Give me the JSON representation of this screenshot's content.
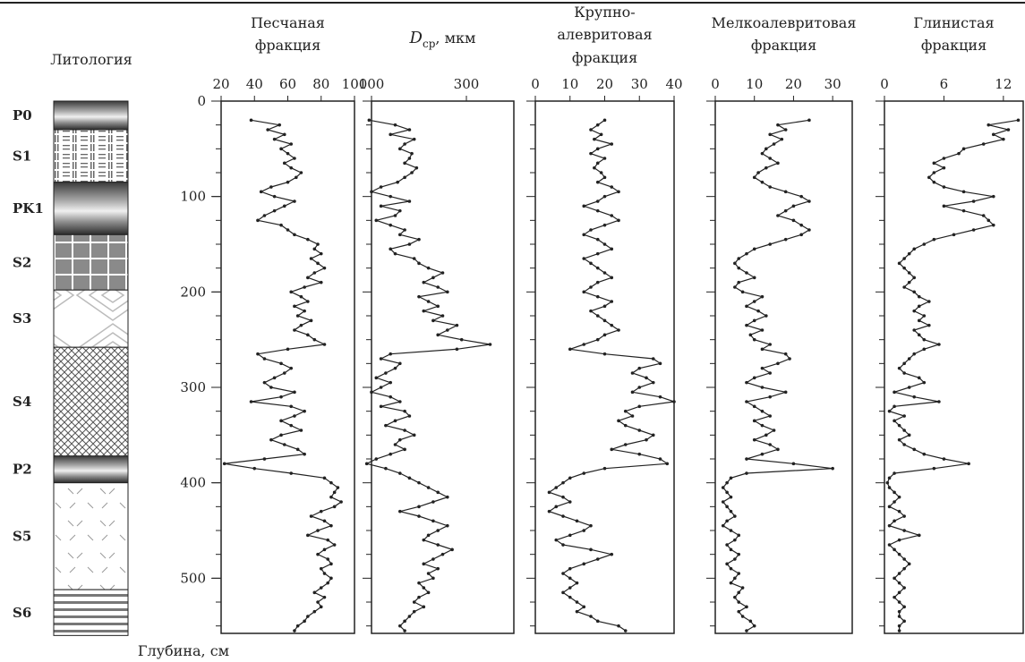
{
  "lithology": {
    "title": "Литология",
    "units": [
      {
        "label": "P0",
        "top": 0,
        "bottom": 30,
        "pattern": "dark-grad"
      },
      {
        "label": "S1",
        "top": 30,
        "bottom": 85,
        "pattern": "lines"
      },
      {
        "label": "PK1",
        "top": 85,
        "bottom": 140,
        "pattern": "dark-grad"
      },
      {
        "label": "S2",
        "top": 140,
        "bottom": 198,
        "pattern": "grid"
      },
      {
        "label": "S3",
        "top": 198,
        "bottom": 258,
        "pattern": "diamond"
      },
      {
        "label": "S4",
        "top": 258,
        "bottom": 372,
        "pattern": "cross"
      },
      {
        "label": "P2",
        "top": 372,
        "bottom": 400,
        "pattern": "dark-grad"
      },
      {
        "label": "S5",
        "top": 400,
        "bottom": 512,
        "pattern": "dash"
      },
      {
        "label": "S6",
        "top": 512,
        "bottom": 560,
        "pattern": "stripes"
      }
    ]
  },
  "chart_data": {
    "type": "line",
    "y_title": "Глубина, см",
    "ylim": [
      0,
      560
    ],
    "y_ticks": [
      0,
      100,
      200,
      300,
      400,
      500
    ],
    "depth": [
      20,
      25,
      30,
      35,
      40,
      45,
      50,
      55,
      60,
      65,
      70,
      75,
      80,
      85,
      90,
      95,
      100,
      105,
      110,
      115,
      120,
      125,
      130,
      135,
      140,
      145,
      150,
      155,
      160,
      165,
      170,
      175,
      180,
      185,
      190,
      195,
      200,
      205,
      210,
      215,
      220,
      225,
      230,
      235,
      240,
      245,
      250,
      255,
      260,
      265,
      270,
      275,
      280,
      285,
      290,
      295,
      300,
      305,
      310,
      315,
      320,
      325,
      330,
      335,
      340,
      345,
      350,
      355,
      360,
      365,
      370,
      375,
      380,
      385,
      390,
      395,
      400,
      405,
      410,
      415,
      420,
      425,
      430,
      435,
      440,
      445,
      450,
      455,
      460,
      465,
      470,
      475,
      480,
      485,
      490,
      495,
      500,
      505,
      510,
      515,
      520,
      525,
      530,
      535,
      540,
      545,
      550,
      555
    ],
    "series": [
      {
        "name": "Песчаная фракция",
        "xlim": [
          20,
          100
        ],
        "x_ticks": [
          20,
          40,
          60,
          80,
          100
        ],
        "values": [
          38,
          55,
          48,
          58,
          52,
          62,
          56,
          60,
          64,
          58,
          62,
          68,
          65,
          60,
          50,
          44,
          52,
          64,
          58,
          52,
          46,
          42,
          56,
          60,
          64,
          72,
          78,
          76,
          80,
          74,
          78,
          82,
          76,
          72,
          80,
          70,
          62,
          68,
          72,
          64,
          70,
          66,
          74,
          68,
          64,
          72,
          76,
          82,
          60,
          42,
          46,
          56,
          62,
          58,
          52,
          46,
          50,
          64,
          56,
          38,
          62,
          70,
          64,
          56,
          62,
          68,
          56,
          50,
          58,
          66,
          70,
          46,
          22,
          40,
          62,
          82,
          86,
          90,
          88,
          86,
          92,
          88,
          80,
          74,
          82,
          86,
          78,
          72,
          84,
          88,
          82,
          78,
          84,
          86,
          80,
          82,
          86,
          84,
          80,
          76,
          82,
          78,
          80,
          76,
          72,
          70,
          66,
          64
        ]
      },
      {
        "name": "Dср, мкм",
        "xlim": [
          100,
          400
        ],
        "x_ticks": [
          100,
          300
        ],
        "values": [
          95,
          150,
          180,
          140,
          190,
          170,
          160,
          185,
          180,
          170,
          195,
          185,
          170,
          155,
          120,
          100,
          140,
          180,
          120,
          160,
          150,
          110,
          140,
          170,
          160,
          200,
          180,
          140,
          150,
          190,
          200,
          220,
          250,
          230,
          210,
          240,
          260,
          200,
          220,
          240,
          210,
          250,
          230,
          280,
          260,
          240,
          290,
          350,
          280,
          140,
          120,
          160,
          150,
          130,
          110,
          140,
          120,
          100,
          140,
          160,
          120,
          170,
          180,
          150,
          130,
          170,
          190,
          160,
          150,
          170,
          140,
          110,
          90,
          130,
          160,
          180,
          200,
          220,
          240,
          260,
          230,
          200,
          160,
          200,
          230,
          260,
          240,
          220,
          210,
          240,
          270,
          250,
          230,
          210,
          240,
          220,
          230,
          200,
          210,
          220,
          200,
          190,
          210,
          190,
          180,
          170,
          160,
          170
        ]
      },
      {
        "name": "Крупно-алевритовая фракция",
        "xlim": [
          0,
          40
        ],
        "x_ticks": [
          0,
          10,
          20,
          30,
          40
        ],
        "values": [
          20,
          18,
          16,
          19,
          17,
          22,
          18,
          16,
          20,
          18,
          17,
          19,
          20,
          18,
          22,
          24,
          20,
          18,
          14,
          18,
          22,
          24,
          20,
          16,
          14,
          18,
          20,
          22,
          18,
          14,
          16,
          18,
          20,
          22,
          18,
          16,
          14,
          18,
          22,
          20,
          16,
          18,
          20,
          22,
          24,
          20,
          18,
          14,
          10,
          20,
          34,
          36,
          30,
          28,
          32,
          34,
          30,
          28,
          36,
          40,
          30,
          26,
          28,
          24,
          26,
          30,
          34,
          32,
          26,
          22,
          30,
          36,
          38,
          20,
          14,
          10,
          8,
          6,
          4,
          8,
          10,
          6,
          4,
          8,
          12,
          16,
          14,
          10,
          6,
          8,
          16,
          22,
          18,
          14,
          10,
          8,
          10,
          12,
          10,
          8,
          10,
          12,
          14,
          12,
          16,
          18,
          24,
          26
        ]
      },
      {
        "name": "Мелкоалевритовая фракция",
        "xlim": [
          0,
          35
        ],
        "x_ticks": [
          0,
          10,
          20,
          30
        ],
        "values": [
          24,
          16,
          18,
          14,
          17,
          15,
          13,
          12,
          14,
          16,
          13,
          11,
          10,
          12,
          14,
          18,
          22,
          24,
          20,
          18,
          16,
          20,
          22,
          24,
          22,
          18,
          14,
          10,
          8,
          6,
          5,
          6,
          8,
          10,
          6,
          5,
          7,
          12,
          10,
          8,
          11,
          13,
          10,
          8,
          12,
          9,
          10,
          14,
          12,
          18,
          19,
          16,
          12,
          14,
          10,
          8,
          12,
          18,
          14,
          8,
          10,
          12,
          14,
          10,
          12,
          15,
          13,
          10,
          14,
          16,
          12,
          8,
          20,
          30,
          8,
          4,
          3,
          2,
          3,
          4,
          2,
          3,
          4,
          5,
          3,
          2,
          4,
          6,
          5,
          3,
          4,
          6,
          5,
          3,
          4,
          6,
          5,
          4,
          7,
          6,
          5,
          6,
          8,
          6,
          7,
          9,
          10,
          8
        ]
      },
      {
        "name": "Глинистая фракция",
        "xlim": [
          0,
          14
        ],
        "x_ticks": [
          0,
          6,
          12
        ],
        "values": [
          13.5,
          10.5,
          12.5,
          11,
          12,
          10,
          8,
          7.5,
          6,
          5,
          6,
          5,
          4.5,
          5,
          6,
          8,
          11,
          9,
          6,
          8,
          10,
          10.5,
          11,
          9,
          7,
          5,
          4,
          3,
          2.5,
          2,
          1.5,
          2,
          2.5,
          3,
          2.5,
          2,
          3,
          3.5,
          4.5,
          3.5,
          3,
          4,
          3.5,
          4.5,
          3,
          3.5,
          4,
          5.5,
          4,
          3,
          2.5,
          2,
          1.5,
          2,
          3.5,
          4,
          2.5,
          1,
          3,
          5.5,
          1,
          0.5,
          2,
          1,
          1.5,
          2,
          2.5,
          1.5,
          2,
          3,
          4,
          6,
          8.5,
          5,
          1,
          0.5,
          0.3,
          0.5,
          1,
          1.5,
          1,
          0.5,
          1.5,
          2,
          1,
          0.5,
          2,
          3.5,
          1.5,
          0.5,
          1,
          1.5,
          2,
          2.5,
          2,
          1.5,
          1,
          1.5,
          2,
          1.5,
          1,
          1.5,
          2,
          1.5,
          1.5,
          2,
          1.5,
          1.5
        ]
      }
    ]
  }
}
